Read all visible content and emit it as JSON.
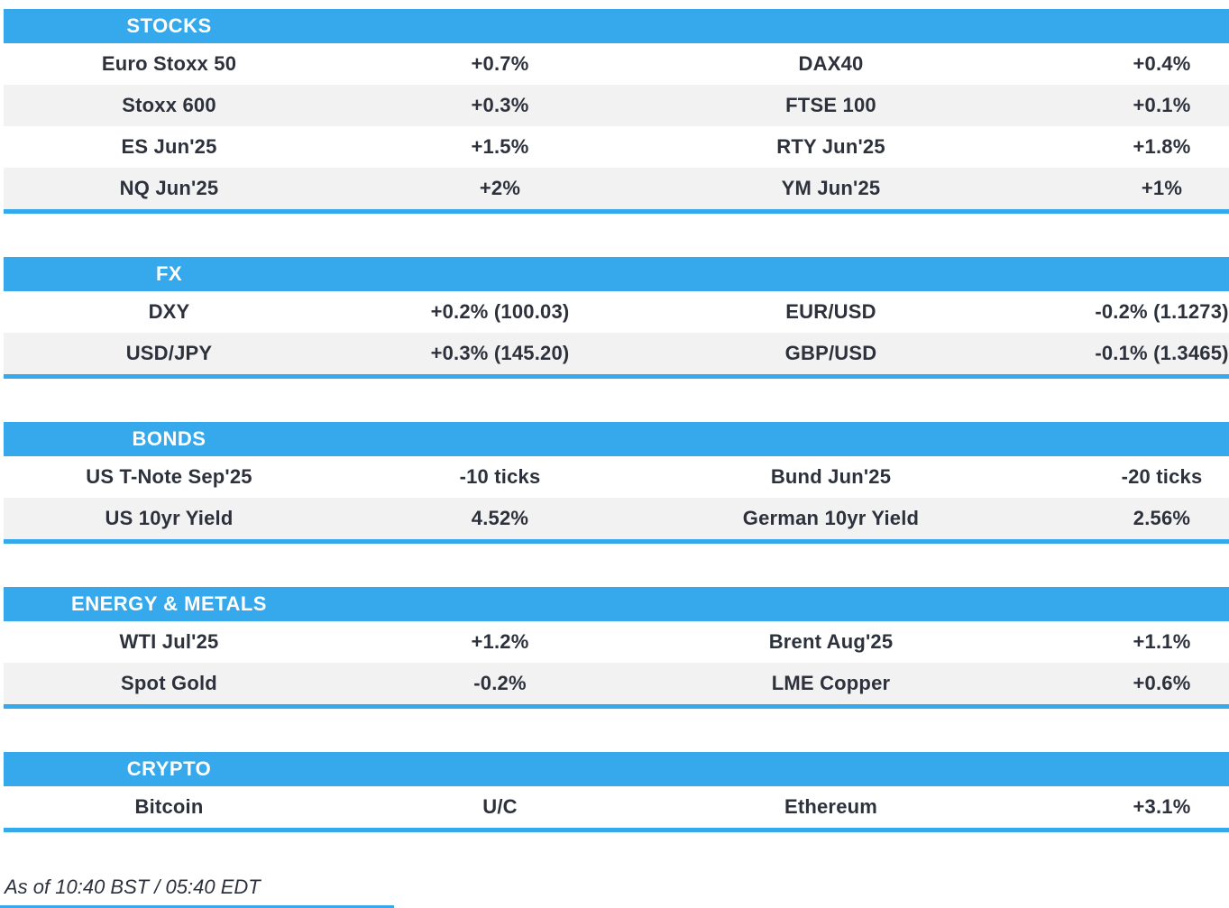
{
  "colors": {
    "accent": "#35a9ec",
    "row_alt": "#f2f2f2",
    "text": "#2d313c"
  },
  "sections": [
    {
      "title": "STOCKS",
      "rows": [
        [
          "Euro Stoxx 50",
          "+0.7%",
          "DAX40",
          "+0.4%"
        ],
        [
          "Stoxx 600",
          "+0.3%",
          "FTSE 100",
          "+0.1%"
        ],
        [
          "ES Jun'25",
          "+1.5%",
          "RTY Jun'25",
          "+1.8%"
        ],
        [
          "NQ Jun'25",
          "+2%",
          "YM Jun'25",
          "+1%"
        ]
      ]
    },
    {
      "title": "FX",
      "rows": [
        [
          "DXY",
          "+0.2% (100.03)",
          "EUR/USD",
          "-0.2% (1.1273)"
        ],
        [
          "USD/JPY",
          "+0.3% (145.20)",
          "GBP/USD",
          "-0.1% (1.3465)"
        ]
      ]
    },
    {
      "title": "BONDS",
      "rows": [
        [
          "US T-Note Sep'25",
          "-10 ticks",
          "Bund Jun'25",
          "-20 ticks"
        ],
        [
          "US 10yr Yield",
          "4.52%",
          "German 10yr Yield",
          "2.56%"
        ]
      ]
    },
    {
      "title": "ENERGY & METALS",
      "rows": [
        [
          "WTI Jul'25",
          "+1.2%",
          "Brent Aug'25",
          "+1.1%"
        ],
        [
          "Spot Gold",
          "-0.2%",
          "LME Copper",
          "+0.6%"
        ]
      ]
    },
    {
      "title": "CRYPTO",
      "rows": [
        [
          "Bitcoin",
          "U/C",
          "Ethereum",
          "+3.1%"
        ]
      ]
    }
  ],
  "footer": {
    "as_of": "As of 10:40 BST / 05:40 EDT"
  }
}
